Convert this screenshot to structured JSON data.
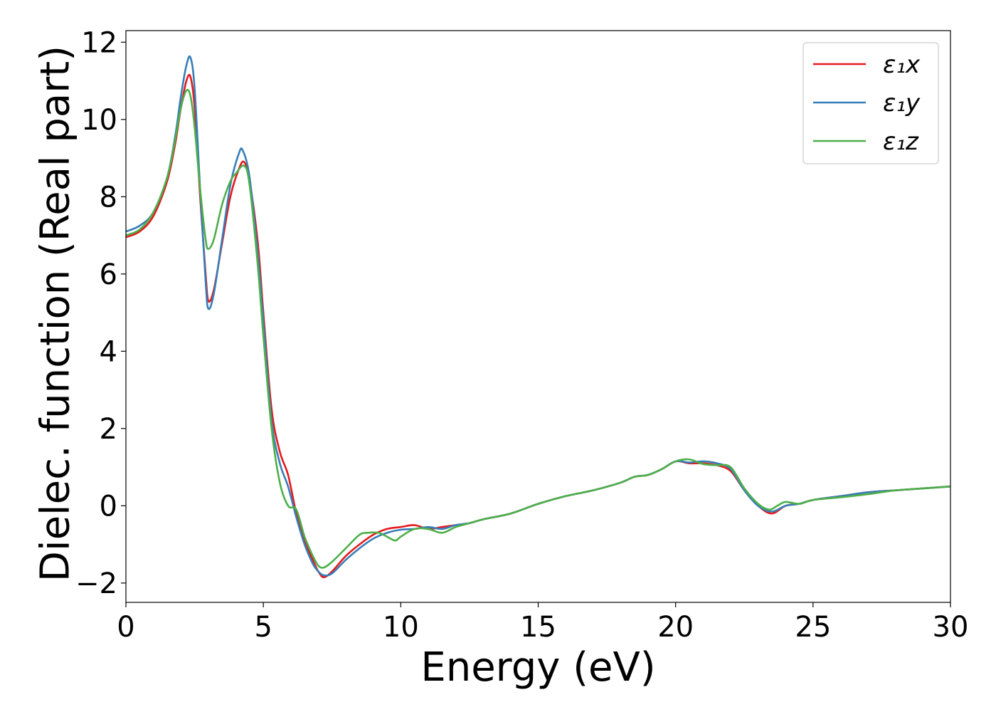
{
  "chart_data": {
    "type": "line",
    "xlabel": "Energy (eV)",
    "ylabel": "Dielec. function (Real part)",
    "xlim": [
      0,
      30
    ],
    "ylim": [
      -2.5,
      12.3
    ],
    "xticks": [
      0,
      5,
      10,
      15,
      20,
      25,
      30
    ],
    "yticks": [
      -2,
      0,
      2,
      4,
      6,
      8,
      10,
      12
    ],
    "xtick_labels": [
      "0",
      "5",
      "10",
      "15",
      "20",
      "25",
      "30"
    ],
    "ytick_labels": [
      "−2",
      "0",
      "2",
      "4",
      "6",
      "8",
      "10",
      "12"
    ],
    "grid": false,
    "legend_position": "top-right",
    "series": [
      {
        "name": "ε₁x",
        "color": "#e41a1c",
        "x": [
          0,
          0.5,
          1.0,
          1.5,
          1.8,
          2.0,
          2.2,
          2.35,
          2.5,
          2.7,
          2.9,
          3.0,
          3.2,
          3.5,
          3.8,
          4.1,
          4.3,
          4.5,
          4.8,
          5.0,
          5.3,
          5.6,
          5.9,
          6.2,
          6.5,
          6.8,
          7.0,
          7.2,
          7.5,
          8.0,
          8.5,
          9.0,
          9.5,
          10.0,
          10.5,
          11.0,
          11.5,
          12.0,
          12.5,
          13.0,
          14.0,
          15.0,
          16.0,
          17.0,
          18.0,
          18.5,
          19.0,
          19.5,
          20.0,
          20.5,
          21.0,
          21.5,
          22.0,
          22.5,
          23.0,
          23.5,
          24.0,
          24.5,
          25.0,
          26.0,
          27.0,
          28.0,
          29.0,
          30.0
        ],
        "values": [
          6.95,
          7.1,
          7.5,
          8.4,
          9.4,
          10.3,
          11.0,
          11.1,
          10.3,
          8.0,
          6.0,
          5.3,
          5.6,
          6.8,
          8.0,
          8.7,
          8.9,
          8.4,
          6.8,
          5.0,
          2.5,
          1.4,
          0.8,
          -0.2,
          -0.9,
          -1.4,
          -1.7,
          -1.85,
          -1.7,
          -1.3,
          -1.0,
          -0.75,
          -0.6,
          -0.55,
          -0.5,
          -0.6,
          -0.55,
          -0.5,
          -0.45,
          -0.35,
          -0.2,
          0.05,
          0.25,
          0.4,
          0.6,
          0.75,
          0.8,
          0.95,
          1.15,
          1.1,
          1.1,
          1.05,
          0.9,
          0.4,
          0.0,
          -0.2,
          0.0,
          0.05,
          0.15,
          0.25,
          0.35,
          0.4,
          0.45,
          0.5
        ]
      },
      {
        "name": "ε₁y",
        "color": "#377eb8",
        "x": [
          0,
          0.5,
          1.0,
          1.5,
          1.8,
          2.0,
          2.2,
          2.35,
          2.5,
          2.7,
          2.9,
          3.0,
          3.2,
          3.5,
          3.8,
          4.1,
          4.25,
          4.5,
          4.8,
          5.0,
          5.3,
          5.6,
          5.9,
          6.2,
          6.5,
          6.8,
          7.0,
          7.2,
          7.5,
          8.0,
          8.5,
          9.0,
          9.5,
          10.0,
          10.5,
          11.0,
          11.5,
          12.0,
          12.5,
          13.0,
          14.0,
          15.0,
          16.0,
          17.0,
          18.0,
          18.5,
          19.0,
          19.5,
          20.0,
          20.5,
          21.0,
          21.5,
          22.0,
          22.5,
          23.0,
          23.5,
          24.0,
          24.5,
          25.0,
          26.0,
          27.0,
          28.0,
          29.0,
          30.0
        ],
        "values": [
          7.1,
          7.25,
          7.6,
          8.5,
          9.6,
          10.6,
          11.4,
          11.6,
          10.8,
          8.2,
          5.8,
          5.1,
          5.5,
          6.9,
          8.3,
          9.1,
          9.2,
          8.5,
          6.5,
          4.8,
          2.2,
          1.1,
          0.5,
          -0.3,
          -1.0,
          -1.5,
          -1.7,
          -1.8,
          -1.75,
          -1.4,
          -1.1,
          -0.85,
          -0.7,
          -0.62,
          -0.6,
          -0.55,
          -0.6,
          -0.5,
          -0.45,
          -0.35,
          -0.2,
          0.05,
          0.25,
          0.4,
          0.6,
          0.75,
          0.8,
          0.95,
          1.15,
          1.12,
          1.15,
          1.1,
          0.95,
          0.4,
          0.0,
          -0.15,
          0.0,
          0.05,
          0.15,
          0.25,
          0.35,
          0.4,
          0.45,
          0.5
        ]
      },
      {
        "name": "ε₁z",
        "color": "#4daf4a",
        "x": [
          0,
          0.5,
          1.0,
          1.5,
          1.8,
          2.0,
          2.2,
          2.35,
          2.5,
          2.7,
          2.9,
          3.0,
          3.2,
          3.5,
          3.8,
          4.0,
          4.3,
          4.5,
          4.8,
          5.0,
          5.3,
          5.6,
          5.9,
          6.2,
          6.5,
          6.8,
          7.0,
          7.2,
          7.5,
          8.0,
          8.5,
          8.8,
          9.2,
          9.5,
          9.8,
          10.0,
          10.5,
          11.0,
          11.5,
          12.0,
          12.5,
          13.0,
          14.0,
          15.0,
          16.0,
          17.0,
          18.0,
          18.5,
          19.0,
          19.5,
          20.0,
          20.5,
          21.0,
          21.5,
          22.0,
          22.5,
          23.0,
          23.4,
          23.7,
          24.0,
          24.5,
          25.0,
          26.0,
          27.0,
          28.0,
          29.0,
          30.0
        ],
        "values": [
          7.0,
          7.15,
          7.6,
          8.5,
          9.5,
          10.3,
          10.75,
          10.6,
          9.8,
          8.2,
          6.9,
          6.65,
          6.9,
          7.8,
          8.4,
          8.6,
          8.8,
          8.3,
          6.2,
          4.4,
          2.0,
          0.6,
          0.0,
          -0.1,
          -0.8,
          -1.3,
          -1.55,
          -1.6,
          -1.45,
          -1.1,
          -0.75,
          -0.7,
          -0.7,
          -0.8,
          -0.9,
          -0.8,
          -0.6,
          -0.6,
          -0.7,
          -0.55,
          -0.45,
          -0.35,
          -0.2,
          0.05,
          0.25,
          0.4,
          0.6,
          0.75,
          0.8,
          0.95,
          1.15,
          1.2,
          1.08,
          1.05,
          1.0,
          0.45,
          0.05,
          -0.1,
          0.0,
          0.1,
          0.05,
          0.15,
          0.22,
          0.3,
          0.4,
          0.45,
          0.5
        ]
      }
    ]
  }
}
